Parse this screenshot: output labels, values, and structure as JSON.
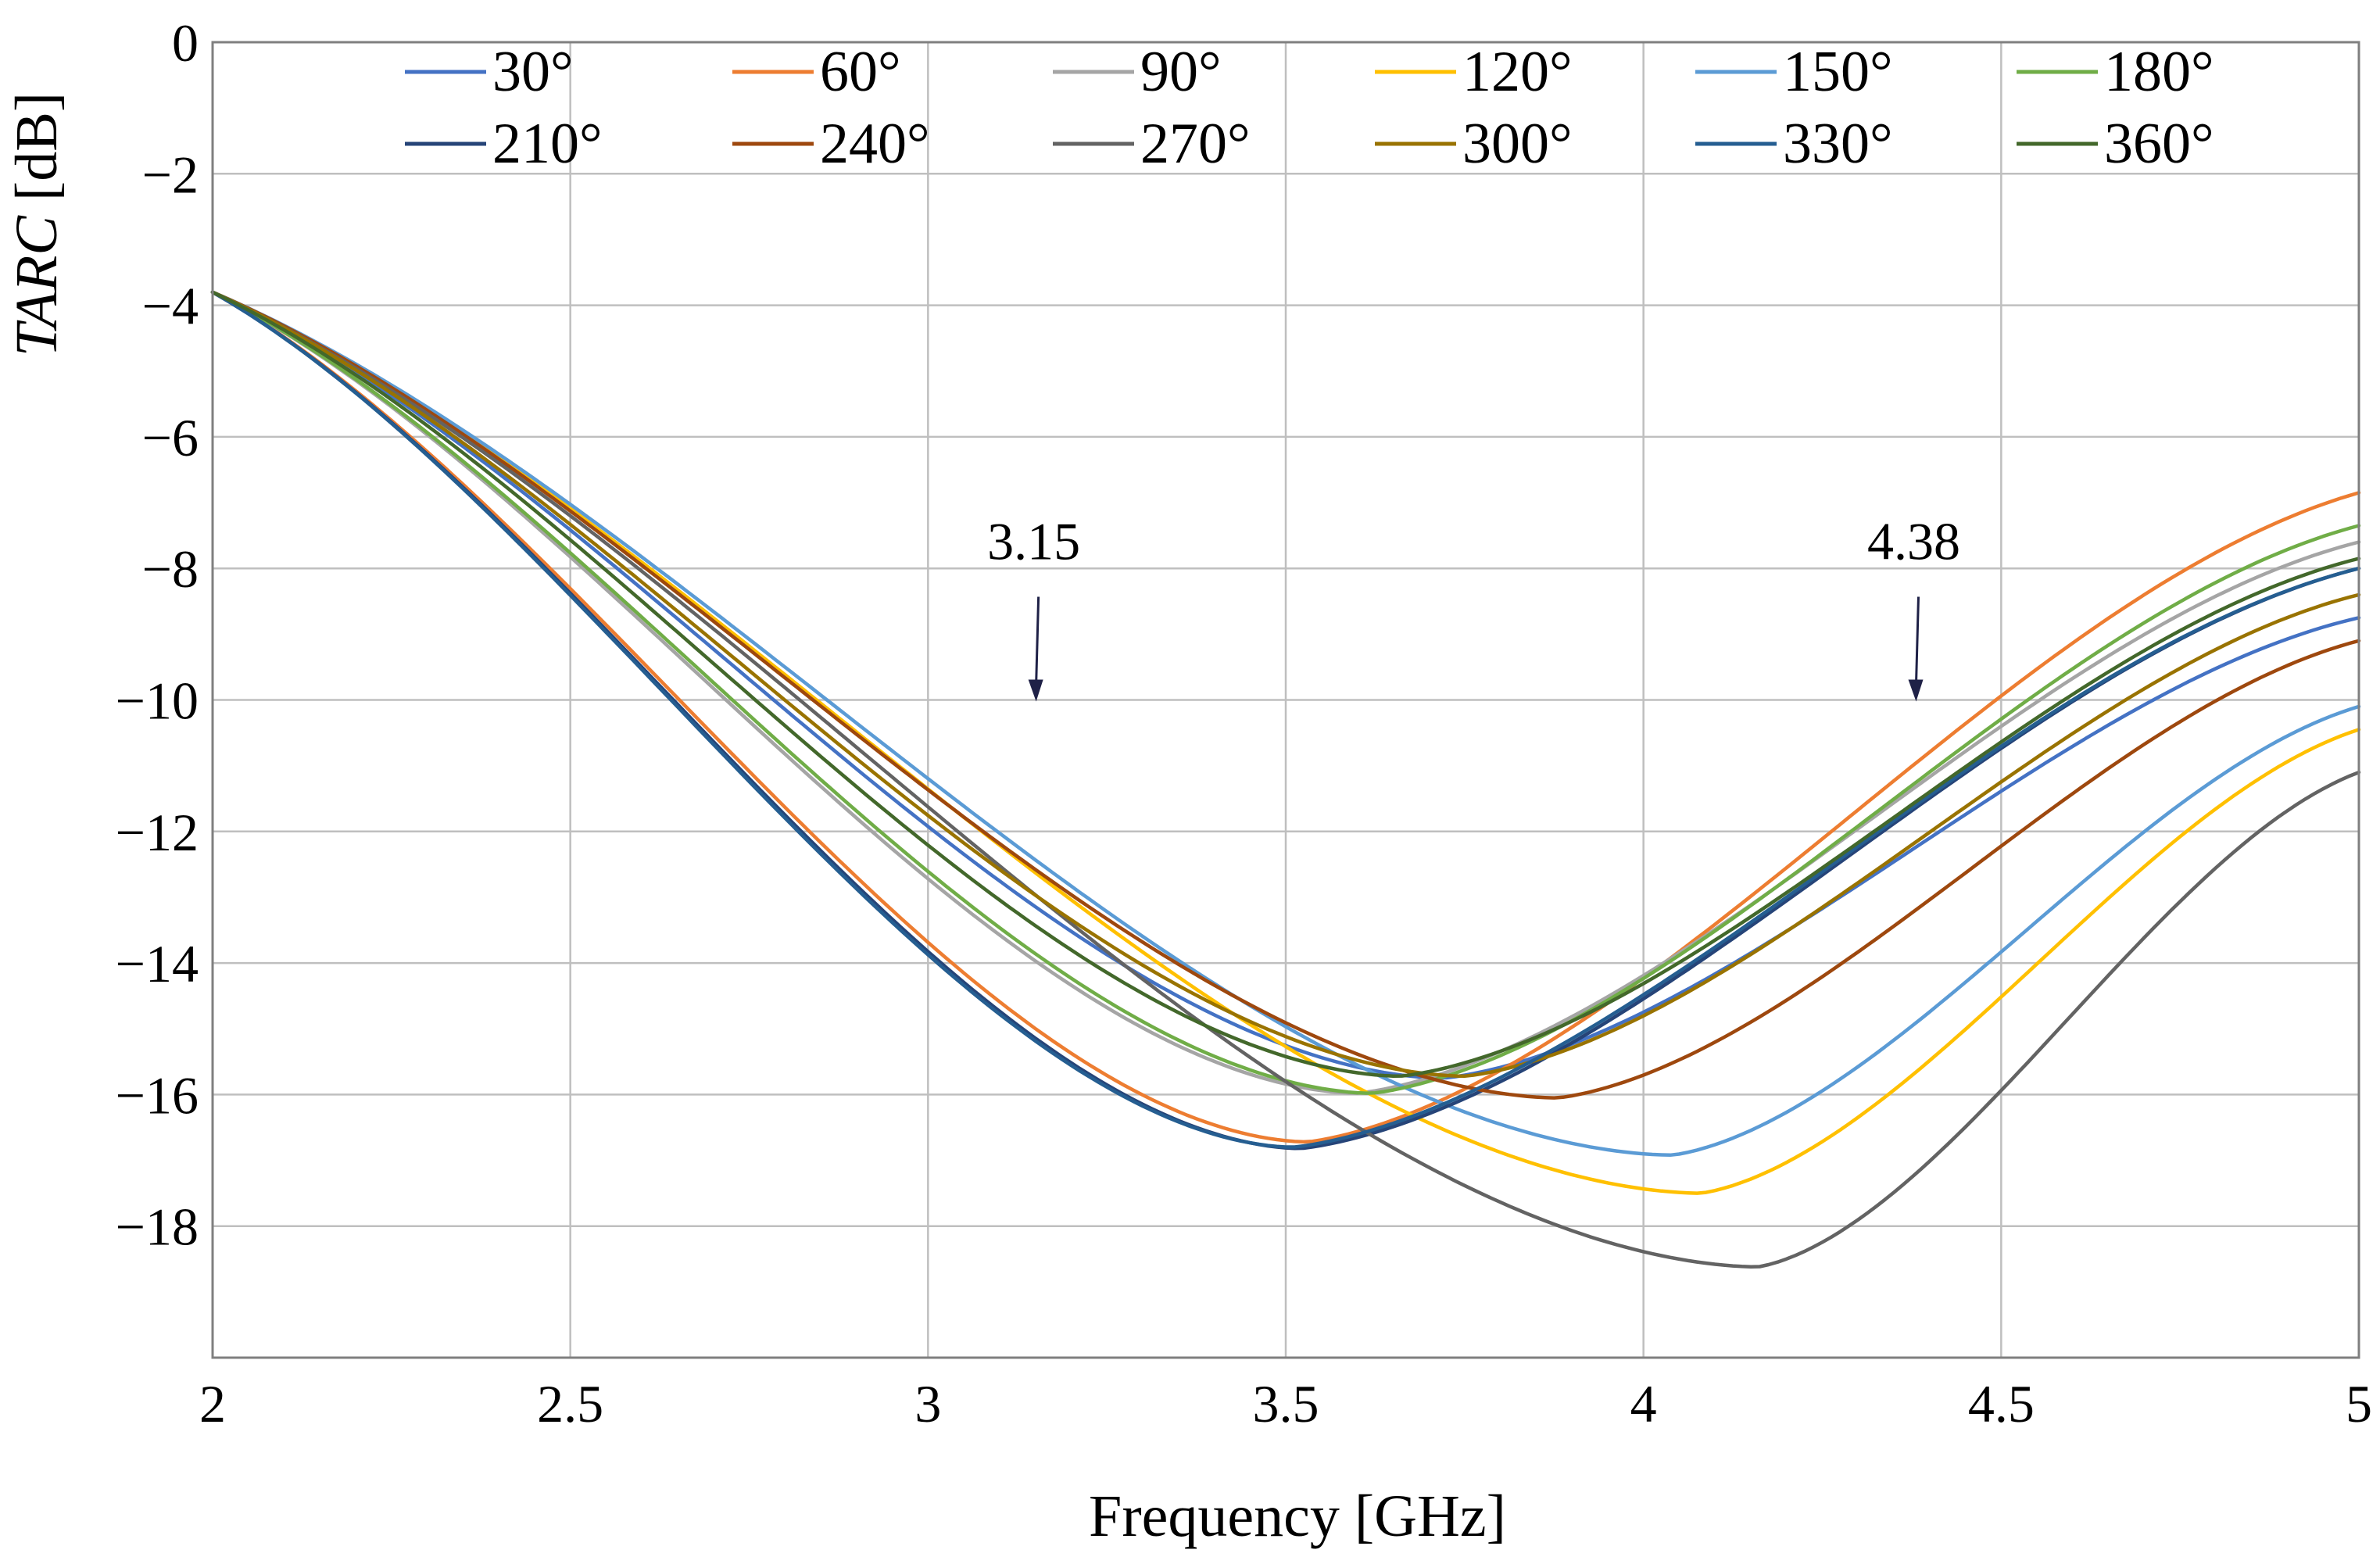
{
  "chart_data": {
    "type": "line",
    "title": "",
    "xlabel": "Frequency [GHz]",
    "ylabel": "TARC [dB]",
    "ylabel_italic": "TARC",
    "ylabel_rest": " [dB]",
    "xlim": [
      2,
      5
    ],
    "ylim": [
      -20,
      0
    ],
    "x_ticks": [
      2,
      2.5,
      3,
      3.5,
      4,
      4.5,
      5
    ],
    "x_tick_labels": [
      "2",
      "2.5",
      "3",
      "3.5",
      "4",
      "4.5",
      "5"
    ],
    "y_ticks": [
      0,
      -2,
      -4,
      -6,
      -8,
      -10,
      -12,
      -14,
      -16,
      -18
    ],
    "y_tick_labels": [
      "0",
      "−2",
      "−4",
      "−6",
      "−8",
      "−10",
      "−12",
      "−14",
      "−16",
      "−18"
    ],
    "grid": true,
    "legend_position": "top",
    "annotations": [
      {
        "label": "3.15",
        "x": 3.15,
        "y": -10
      },
      {
        "label": "4.38",
        "x": 4.38,
        "y": -10
      }
    ],
    "shape_points": {
      "x": [
        2,
        2.5,
        3,
        3.5,
        3.75,
        4,
        4.5,
        5
      ],
      "y_slow": [
        -3.8,
        -6.0,
        -9.2,
        -13.2,
        -15.7,
        -16.8,
        -14.6,
        -11.0
      ],
      "y_mid": [
        -3.8,
        -6.2,
        -9.8,
        -14.4,
        -15.7,
        -15.1,
        -12.0,
        -8.7
      ],
      "y_fast": [
        -3.8,
        -7.0,
        -11.9,
        -16.8,
        -15.7,
        -13.0,
        -9.4,
        -6.7
      ]
    },
    "series": [
      {
        "name": "30°",
        "color": "#4472c4",
        "x_min": 3.72,
        "y_min": -15.75,
        "x_end": 4.8
      },
      {
        "name": "60°",
        "color": "#ed7d31",
        "x_min": 3.53,
        "y_min": -16.72,
        "x_end": 2.9
      },
      {
        "name": "90°",
        "color": "#a5a5a5",
        "x_min": 3.6,
        "y_min": -15.98,
        "x_end": 3.2
      },
      {
        "name": "120°",
        "color": "#ffc000",
        "x_min": 4.08,
        "y_min": -17.5,
        "x_end": 8.5
      },
      {
        "name": "150°",
        "color": "#5b9bd5",
        "x_min": 4.04,
        "y_min": -16.92,
        "x_end": 7.6
      },
      {
        "name": "180°",
        "color": "#70ad47",
        "x_min": 3.62,
        "y_min": -15.98,
        "x_end": 3.0
      },
      {
        "name": "210°",
        "color": "#264478",
        "x_min": 3.52,
        "y_min": -16.82,
        "x_end": 2.6
      },
      {
        "name": "240°",
        "color": "#9e480e",
        "x_min": 3.88,
        "y_min": -16.05,
        "x_end": 5.6
      },
      {
        "name": "270°",
        "color": "#636363",
        "x_min": 4.16,
        "y_min": -18.62,
        "x_end": 9.0
      },
      {
        "name": "300°",
        "color": "#997300",
        "x_min": 3.75,
        "y_min": -15.72,
        "x_end": 4.5
      },
      {
        "name": "330°",
        "color": "#255e91",
        "x_min": 3.51,
        "y_min": -16.8,
        "x_end": 2.6
      },
      {
        "name": "360°",
        "color": "#43682b",
        "x_min": 3.66,
        "y_min": -15.72,
        "x_end": 3.6
      }
    ]
  }
}
